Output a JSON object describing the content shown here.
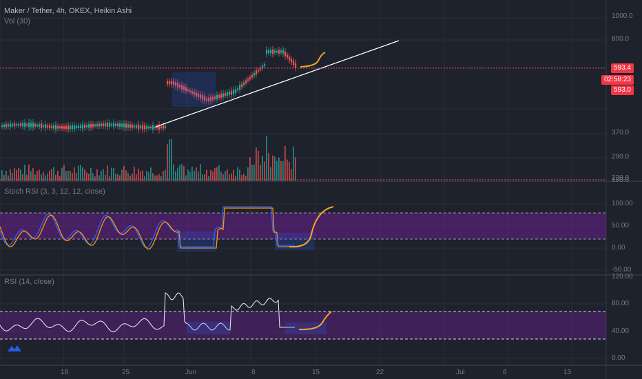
{
  "header": {
    "symbol_line": "Maker / Tether, 4h, OKEX, Heikin Ashi",
    "volume_label": "Vol (30)",
    "stoch_label": "Stoch RSI (3, 3, 12, 12, close)",
    "rsi_label": "RSI (14, close)"
  },
  "price_tags": {
    "last": "593.4",
    "countdown": "02:58:23",
    "prev": "593.0"
  },
  "colors": {
    "background": "#1e222d",
    "grid": "#2a2e39",
    "bull": "#26a69a",
    "bear": "#ef5350",
    "stoch_k": "#2962ff",
    "stoch_d": "#ff9800",
    "band": "#7b1fa2",
    "projection": "#f5a623",
    "trendline": "#ffffff",
    "price_line": "#f23645"
  },
  "chart_data": [
    {
      "type": "candlestick",
      "title": "Maker / Tether, 4h, OKEX, Heikin Ashi",
      "y_ticks": [
        "1000.0",
        "800.0",
        "593.4",
        "370.0",
        "290.0",
        "230.0",
        "190.0"
      ],
      "x_ticks": [
        "18",
        "25",
        "Jun",
        "8",
        "15",
        "22",
        "Jul",
        "6",
        "13"
      ],
      "current_price": 593.4,
      "series": [
        {
          "name": "price",
          "segments": [
            {
              "from": "May 13",
              "to": "May 28",
              "level": 350
            },
            {
              "from": "May 28",
              "to": "May 29",
              "level": 560
            },
            {
              "from": "May 29",
              "to": "Jun 3",
              "level": 480
            },
            {
              "from": "Jun 3",
              "to": "Jun 9",
              "level": 620
            },
            {
              "from": "Jun 9",
              "to": "Jun 12",
              "level": 780
            },
            {
              "from": "Jun 12",
              "to": "Jun 13",
              "level": 593
            }
          ]
        },
        {
          "name": "volume",
          "note": "bars up to ~290"
        }
      ]
    },
    {
      "type": "line",
      "title": "Stoch RSI (3, 3, 12, 12, close)",
      "y_ticks": [
        "100.00",
        "50.00",
        "0.00",
        "-50.00"
      ],
      "bands": [
        80,
        20
      ]
    },
    {
      "type": "line",
      "title": "RSI (14, close)",
      "y_ticks": [
        "120.00",
        "80.00",
        "40.00",
        "0.00"
      ],
      "bands": [
        70,
        30
      ]
    }
  ]
}
